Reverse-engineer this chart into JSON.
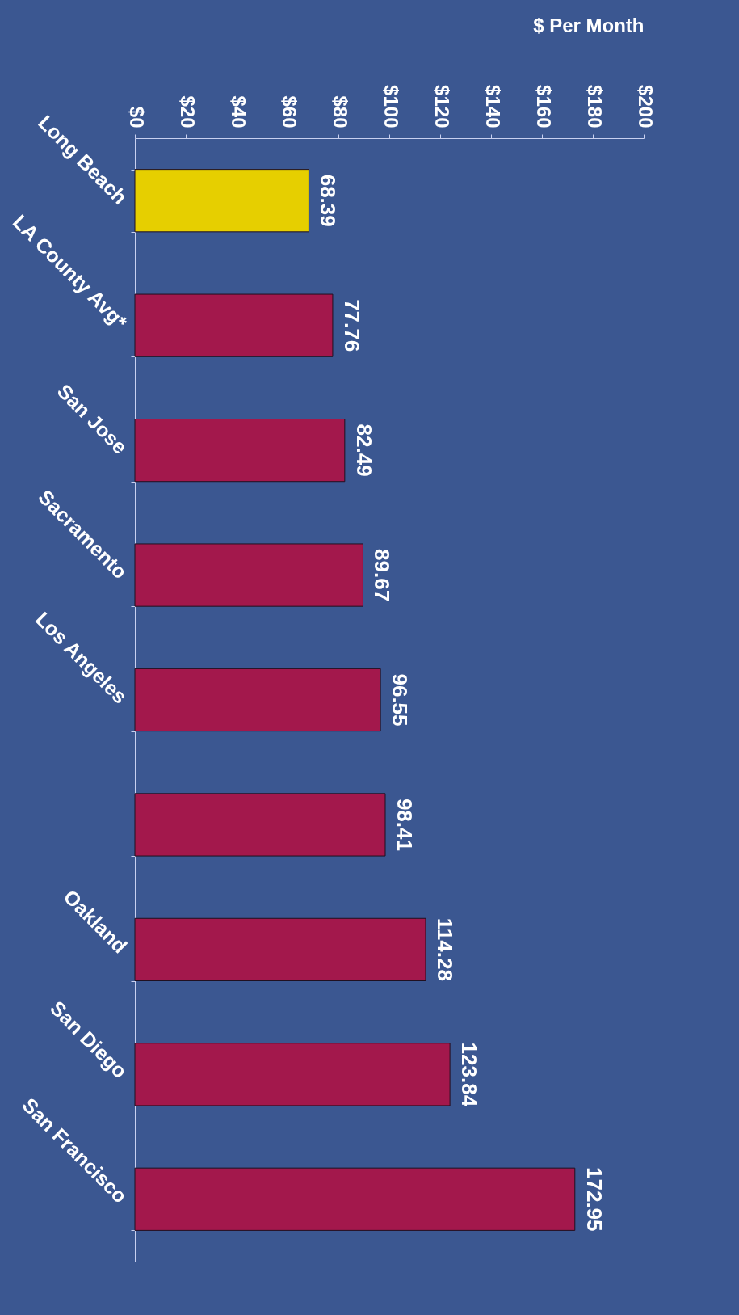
{
  "chart_data": {
    "type": "bar",
    "orientation": "horizontal",
    "xlabel": "$ Per Month",
    "categories": [
      "Long Beach",
      "LA County Avg*",
      "San Jose",
      "Sacramento",
      "Los Angeles",
      null,
      "Oakland",
      "San Diego",
      "San Francisco"
    ],
    "values": [
      68.39,
      77.76,
      82.49,
      89.67,
      96.55,
      98.41,
      114.28,
      123.84,
      172.95
    ],
    "colors": [
      "#e6cf00",
      "#a3184c",
      "#a3184c",
      "#a3184c",
      "#a3184c",
      "#a3184c",
      "#a3184c",
      "#a3184c",
      "#a3184c"
    ],
    "xlim": [
      0,
      200
    ],
    "xticks": [
      {
        "value": 0,
        "label": "$0"
      },
      {
        "value": 20,
        "label": "$20"
      },
      {
        "value": 40,
        "label": "$40"
      },
      {
        "value": 60,
        "label": "$60"
      },
      {
        "value": 80,
        "label": "$80"
      },
      {
        "value": 100,
        "label": "$100"
      },
      {
        "value": 120,
        "label": "$120"
      },
      {
        "value": 140,
        "label": "$140"
      },
      {
        "value": 160,
        "label": "$160"
      },
      {
        "value": 180,
        "label": "$180"
      },
      {
        "value": 200,
        "label": "$200"
      }
    ],
    "data_labels": true,
    "grid": false
  }
}
